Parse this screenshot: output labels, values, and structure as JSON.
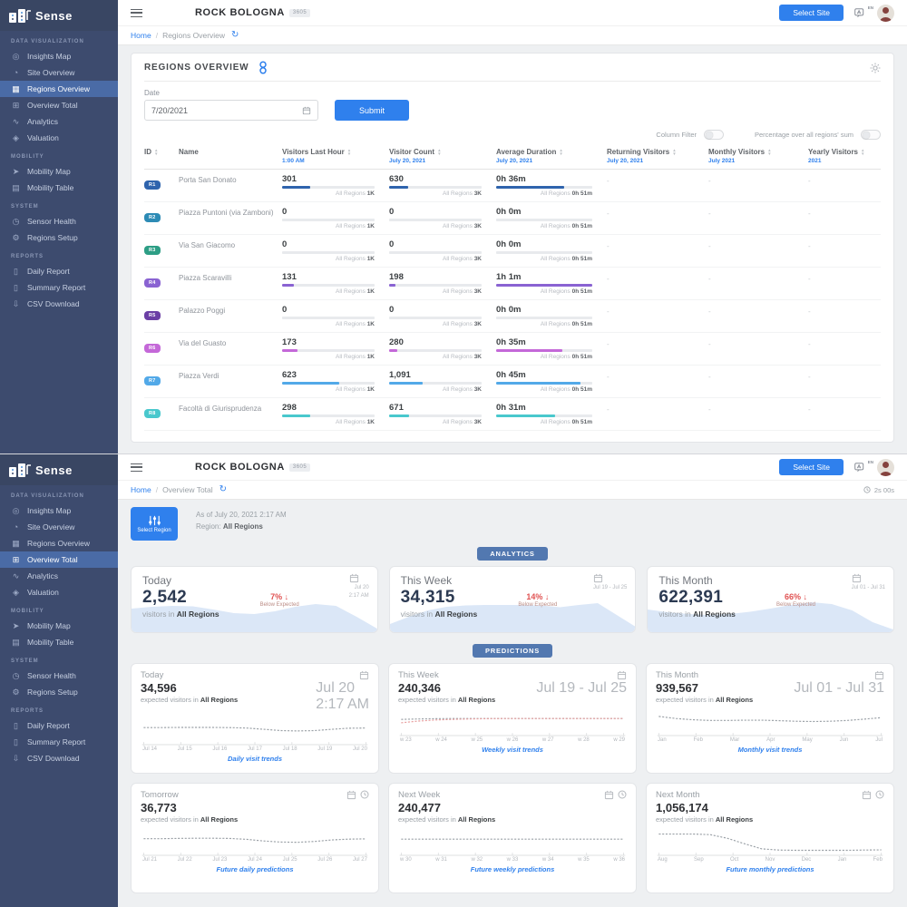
{
  "brand": {
    "name": "Sense"
  },
  "header": {
    "title": "ROCK BOLOGNA",
    "title_badge": "3605",
    "select_site_label": "Select Site",
    "language_badge": "EN"
  },
  "sidebar": {
    "sections": [
      {
        "title": "DATA VISUALIZATION",
        "items": [
          {
            "label": "Insights Map",
            "glyph": "◎"
          },
          {
            "label": "Site Overview",
            "glyph": "◔"
          },
          {
            "label": "Regions Overview",
            "glyph": "▦"
          },
          {
            "label": "Overview Total",
            "glyph": "⊞"
          },
          {
            "label": "Analytics",
            "glyph": "∿"
          },
          {
            "label": "Valuation",
            "glyph": "◈"
          }
        ]
      },
      {
        "title": "MOBILITY",
        "items": [
          {
            "label": "Mobility Map",
            "glyph": "➤"
          },
          {
            "label": "Mobility Table",
            "glyph": "▤"
          }
        ]
      },
      {
        "title": "SYSTEM",
        "items": [
          {
            "label": "Sensor Health",
            "glyph": "◷"
          },
          {
            "label": "Regions Setup",
            "glyph": "⚙"
          }
        ]
      },
      {
        "title": "REPORTS",
        "items": [
          {
            "label": "Daily Report",
            "glyph": "▯"
          },
          {
            "label": "Summary Report",
            "glyph": "▯"
          },
          {
            "label": "CSV Download",
            "glyph": "⇩"
          }
        ]
      }
    ]
  },
  "top_panel": {
    "selected_nav": "Regions Overview",
    "breadcrumb": {
      "home": "Home",
      "separator": "/",
      "current": "Regions Overview"
    },
    "card": {
      "title": "REGIONS OVERVIEW",
      "date_label": "Date",
      "date_value": "7/20/2021",
      "submit_label": "Submit",
      "toggles": [
        {
          "label": "Column Filter",
          "on": false
        },
        {
          "label": "Percentage over all regions' sum",
          "on": false
        }
      ],
      "table": {
        "all_regions_label": "All Regions",
        "columns": [
          {
            "label": "ID",
            "sub": "",
            "sortable": true
          },
          {
            "label": "Name",
            "sub": "",
            "sortable": false
          },
          {
            "label": "Visitors Last Hour",
            "sub": "1:00 AM",
            "sortable": true
          },
          {
            "label": "Visitor Count",
            "sub": "July 20, 2021",
            "sortable": true
          },
          {
            "label": "Average Duration",
            "sub": "July 20, 2021",
            "sortable": true
          },
          {
            "label": "Returning Visitors",
            "sub": "July 20, 2021",
            "sortable": true
          },
          {
            "label": "Monthly Visitors",
            "sub": "July 2021",
            "sortable": true
          },
          {
            "label": "Yearly Visitors",
            "sub": "2021",
            "sortable": true
          }
        ],
        "rows": [
          {
            "id": "R1",
            "color": "#2f64ad",
            "name": "Porta San Donato",
            "visitors_last_hour": {
              "value": "301",
              "pct": 30,
              "total": "1K"
            },
            "visitor_count": {
              "value": "630",
              "pct": 21,
              "total": "3K"
            },
            "avg_duration": {
              "value": "0h 36m",
              "pct": 71,
              "total": "0h 51m"
            },
            "returning": "-",
            "monthly": "-",
            "yearly": "-"
          },
          {
            "id": "R2",
            "color": "#2d8bb5",
            "name": "Piazza Puntoni (via Zamboni)",
            "visitors_last_hour": {
              "value": "0",
              "pct": 0,
              "total": "1K"
            },
            "visitor_count": {
              "value": "0",
              "pct": 0,
              "total": "3K"
            },
            "avg_duration": {
              "value": "0h 0m",
              "pct": 0,
              "total": "0h 51m"
            },
            "returning": "-",
            "monthly": "-",
            "yearly": "-"
          },
          {
            "id": "R3",
            "color": "#2d9e85",
            "name": "Via San Giacomo",
            "visitors_last_hour": {
              "value": "0",
              "pct": 0,
              "total": "1K"
            },
            "visitor_count": {
              "value": "0",
              "pct": 0,
              "total": "3K"
            },
            "avg_duration": {
              "value": "0h 0m",
              "pct": 0,
              "total": "0h 51m"
            },
            "returning": "-",
            "monthly": "-",
            "yearly": "-"
          },
          {
            "id": "R4",
            "color": "#8a63d2",
            "name": "Piazza Scaravilli",
            "visitors_last_hour": {
              "value": "131",
              "pct": 13,
              "total": "1K"
            },
            "visitor_count": {
              "value": "198",
              "pct": 7,
              "total": "3K"
            },
            "avg_duration": {
              "value": "1h 1m",
              "pct": 100,
              "total": "0h 51m"
            },
            "returning": "-",
            "monthly": "-",
            "yearly": "-"
          },
          {
            "id": "R5",
            "color": "#6b3fa5",
            "name": "Palazzo Poggi",
            "visitors_last_hour": {
              "value": "0",
              "pct": 0,
              "total": "1K"
            },
            "visitor_count": {
              "value": "0",
              "pct": 0,
              "total": "3K"
            },
            "avg_duration": {
              "value": "0h 0m",
              "pct": 0,
              "total": "0h 51m"
            },
            "returning": "-",
            "monthly": "-",
            "yearly": "-"
          },
          {
            "id": "R6",
            "color": "#c468d8",
            "name": "Via del Guasto",
            "visitors_last_hour": {
              "value": "173",
              "pct": 17,
              "total": "1K"
            },
            "visitor_count": {
              "value": "280",
              "pct": 9,
              "total": "3K"
            },
            "avg_duration": {
              "value": "0h 35m",
              "pct": 69,
              "total": "0h 51m"
            },
            "returning": "-",
            "monthly": "-",
            "yearly": "-"
          },
          {
            "id": "R7",
            "color": "#52a9e8",
            "name": "Piazza Verdi",
            "visitors_last_hour": {
              "value": "623",
              "pct": 62,
              "total": "1K"
            },
            "visitor_count": {
              "value": "1,091",
              "pct": 36,
              "total": "3K"
            },
            "avg_duration": {
              "value": "0h 45m",
              "pct": 88,
              "total": "0h 51m"
            },
            "returning": "-",
            "monthly": "-",
            "yearly": "-"
          },
          {
            "id": "R8",
            "color": "#49c8cd",
            "name": "Facoltà di Giurisprudenza",
            "visitors_last_hour": {
              "value": "298",
              "pct": 30,
              "total": "1K"
            },
            "visitor_count": {
              "value": "671",
              "pct": 22,
              "total": "3K"
            },
            "avg_duration": {
              "value": "0h 31m",
              "pct": 61,
              "total": "0h 51m"
            },
            "returning": "-",
            "monthly": "-",
            "yearly": "-"
          }
        ]
      }
    }
  },
  "bottom_panel": {
    "selected_nav": "Overview Total",
    "breadcrumb": {
      "home": "Home",
      "separator": "/",
      "current": "Overview Total"
    },
    "refresh_countdown": "2s 00s",
    "select_region_label": "Select Region",
    "as_of": "As of July 20, 2021 2:17 AM",
    "region_label": "Region:",
    "region_value": "All Regions",
    "analytics_pill": "ANALYTICS",
    "predictions_pill": "PREDICTIONS",
    "analytics_cards": [
      {
        "title": "Today",
        "value": "2,542",
        "prefix": "visitors in",
        "region": "All Regions",
        "delta_pct": "7%",
        "delta_arrow": "↓",
        "delta_note": "Below Expected",
        "date_lines": [
          "Jul 20",
          "2:17 AM"
        ],
        "wave": [
          52,
          56,
          58,
          57,
          50,
          42,
          40,
          46,
          56,
          62,
          58,
          34,
          8
        ]
      },
      {
        "title": "This Week",
        "value": "34,315",
        "prefix": "visitors in",
        "region": "All Regions",
        "delta_pct": "14%",
        "delta_arrow": "↓",
        "delta_note": "Below Expected",
        "date_lines": [
          "Jul 19 - Jul 25"
        ],
        "wave": [
          18,
          34,
          48,
          56,
          59,
          60,
          60,
          60,
          59,
          55,
          60,
          64,
          38,
          12
        ]
      },
      {
        "title": "This Month",
        "value": "622,391",
        "prefix": "visitors in",
        "region": "All Regions",
        "delta_pct": "66%",
        "delta_arrow": "↓",
        "delta_note": "Below Expected",
        "date_lines": [
          "Jul 01 - Jul 31"
        ],
        "wave": [
          50,
          44,
          40,
          38,
          40,
          45,
          52,
          60,
          66,
          62,
          48,
          22,
          6
        ]
      }
    ],
    "prediction_cards": [
      {
        "title": "Today",
        "value": "34,596",
        "prefix": "expected visitors in",
        "region": "All Regions",
        "date_lines": [
          "Jul 20",
          "2:17 AM"
        ],
        "future": false,
        "caption": "Daily visit trends",
        "x_labels": [
          "Jul 14",
          "Jul 15",
          "Jul 16",
          "Jul 17",
          "Jul 18",
          "Jul 19",
          "Jul 20"
        ],
        "series": [
          {
            "color": "#9aa0a6",
            "values": [
              60,
              60,
              61,
              61,
              61,
              60,
              58,
              52,
              46,
              44,
              46,
              52,
              57,
              58
            ]
          }
        ]
      },
      {
        "title": "This Week",
        "value": "240,346",
        "prefix": "expected visitors in",
        "region": "All Regions",
        "date_lines": [
          "Jul 19 - Jul 25"
        ],
        "future": false,
        "caption": "Weekly visit trends",
        "x_labels": [
          "w 23",
          "w 24",
          "w 25",
          "w 26",
          "w 27",
          "w 28",
          "w 29"
        ],
        "series": [
          {
            "color": "#9aa0a6",
            "values": [
              56,
              58,
              59,
              60,
              60,
              60,
              60,
              60,
              60,
              60,
              60,
              60,
              60,
              60
            ]
          },
          {
            "color": "#e8a0a0",
            "values": [
              40,
              48,
              53,
              56,
              58,
              59,
              60,
              60,
              60,
              60,
              60,
              60,
              60,
              60
            ]
          }
        ]
      },
      {
        "title": "This Month",
        "value": "939,567",
        "prefix": "expected visitors in",
        "region": "All Regions",
        "date_lines": [
          "Jul 01 - Jul 31"
        ],
        "future": false,
        "caption": "Monthly visit trends",
        "x_labels": [
          "Jan",
          "Feb",
          "Mar",
          "Apr",
          "May",
          "Jun",
          "Jul"
        ],
        "series": [
          {
            "color": "#9aa0a6",
            "values": [
              70,
              60,
              54,
              51,
              51,
              52,
              52,
              50,
              47,
              46,
              47,
              51,
              57,
              64
            ]
          }
        ]
      },
      {
        "title": "Tomorrow",
        "value": "36,773",
        "prefix": "expected visitors in",
        "region": "All Regions",
        "date_lines": [],
        "future": true,
        "caption": "Future daily predictions",
        "x_labels": [
          "Jul 21",
          "Jul 22",
          "Jul 23",
          "Jul 24",
          "Jul 25",
          "Jul 26",
          "Jul 27"
        ],
        "series": [
          {
            "color": "#9aa0a6",
            "values": [
              58,
              58,
              59,
              60,
              60,
              59,
              55,
              47,
              42,
              41,
              45,
              52,
              56,
              57
            ]
          }
        ]
      },
      {
        "title": "Next Week",
        "value": "240,477",
        "prefix": "expected visitors in",
        "region": "All Regions",
        "date_lines": [],
        "future": true,
        "caption": "Future weekly predictions",
        "x_labels": [
          "w 30",
          "w 31",
          "w 32",
          "w 33",
          "w 34",
          "w 35",
          "w 36"
        ],
        "series": [
          {
            "color": "#9aa0a6",
            "values": [
              56,
              56,
              56,
              56,
              56,
              56,
              56,
              56,
              56,
              56,
              56,
              56,
              56,
              56
            ]
          }
        ]
      },
      {
        "title": "Next Month",
        "value": "1,056,174",
        "prefix": "expected visitors in",
        "region": "All Regions",
        "date_lines": [],
        "future": true,
        "caption": "Future monthly predictions",
        "x_labels": [
          "Aug",
          "Sep",
          "Oct",
          "Nov",
          "Dec",
          "Jan",
          "Feb"
        ],
        "series": [
          {
            "color": "#9aa0a6",
            "values": [
              80,
              80,
              80,
              77,
              60,
              34,
              10,
              4,
              3,
              3,
              3,
              3,
              4,
              5
            ]
          }
        ]
      }
    ]
  }
}
